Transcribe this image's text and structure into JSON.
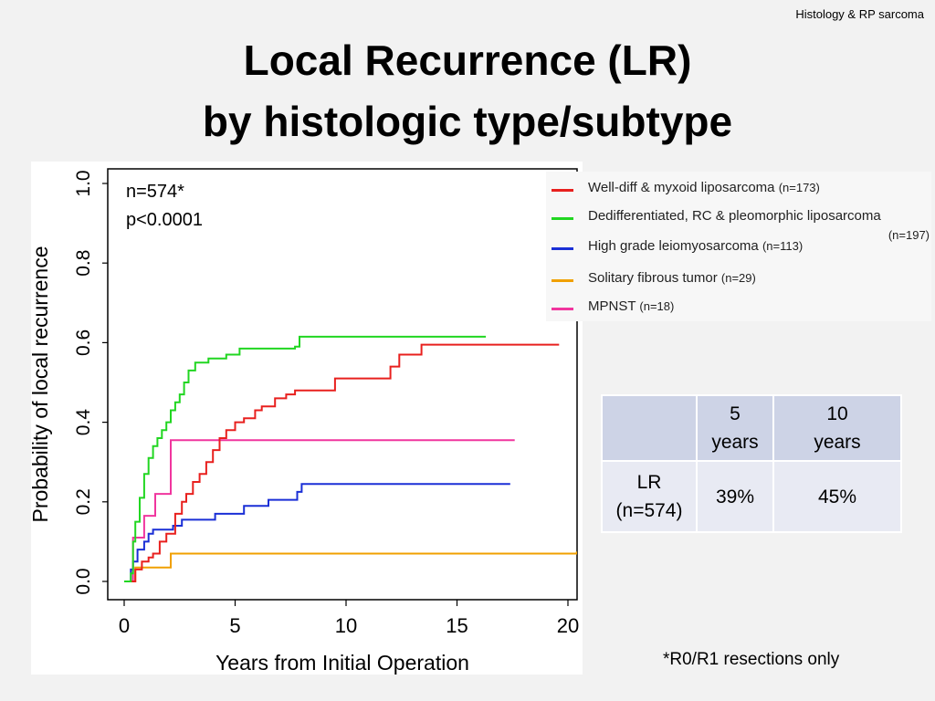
{
  "slide": {
    "corner_label": "Histology & RP sarcoma",
    "title_line1": "Local Recurrence (LR)",
    "title_line2": "by histologic type/subtype",
    "footnote": "*R0/R1 resections only"
  },
  "chart_data": {
    "type": "line",
    "step": true,
    "xlabel": "Years from Initial Operation",
    "ylabel": "Probability of local recurrence",
    "xlim": [
      0,
      20
    ],
    "ylim": [
      0,
      1.0
    ],
    "xticks": [
      "0",
      "5",
      "10",
      "15",
      "20"
    ],
    "yticks": [
      "0.0",
      "0.2",
      "0.4",
      "0.6",
      "0.8",
      "1.0"
    ],
    "annotations": [
      "n=574*",
      "p<0.0001"
    ],
    "legend_position": "top-right",
    "series": [
      {
        "name": "Well-diff & myxoid liposarcoma",
        "n_label": "(n=173)",
        "color": "#e8201e",
        "points": [
          [
            0,
            0
          ],
          [
            0.3,
            0
          ],
          [
            0.5,
            0.03
          ],
          [
            0.8,
            0.05
          ],
          [
            1.1,
            0.06
          ],
          [
            1.3,
            0.07
          ],
          [
            1.6,
            0.1
          ],
          [
            1.9,
            0.12
          ],
          [
            2.3,
            0.17
          ],
          [
            2.6,
            0.2
          ],
          [
            2.8,
            0.22
          ],
          [
            3.1,
            0.25
          ],
          [
            3.4,
            0.27
          ],
          [
            3.7,
            0.3
          ],
          [
            4.0,
            0.33
          ],
          [
            4.3,
            0.36
          ],
          [
            4.6,
            0.38
          ],
          [
            5.0,
            0.4
          ],
          [
            5.4,
            0.41
          ],
          [
            5.9,
            0.43
          ],
          [
            6.2,
            0.44
          ],
          [
            6.8,
            0.46
          ],
          [
            7.3,
            0.47
          ],
          [
            7.7,
            0.48
          ],
          [
            9.5,
            0.51
          ],
          [
            12.0,
            0.54
          ],
          [
            12.4,
            0.57
          ],
          [
            13.4,
            0.595
          ],
          [
            19.6,
            0.595
          ]
        ]
      },
      {
        "name": "Dedifferentiated, RC & pleomorphic liposarcoma",
        "n_label": "(n=197)",
        "color": "#21d621",
        "points": [
          [
            0,
            0
          ],
          [
            0.3,
            0.02
          ],
          [
            0.4,
            0.1
          ],
          [
            0.5,
            0.15
          ],
          [
            0.7,
            0.21
          ],
          [
            0.9,
            0.27
          ],
          [
            1.1,
            0.31
          ],
          [
            1.3,
            0.34
          ],
          [
            1.5,
            0.36
          ],
          [
            1.7,
            0.38
          ],
          [
            1.9,
            0.4
          ],
          [
            2.1,
            0.43
          ],
          [
            2.3,
            0.45
          ],
          [
            2.5,
            0.47
          ],
          [
            2.7,
            0.5
          ],
          [
            2.9,
            0.53
          ],
          [
            3.2,
            0.55
          ],
          [
            3.8,
            0.56
          ],
          [
            4.6,
            0.57
          ],
          [
            5.2,
            0.585
          ],
          [
            7.7,
            0.59
          ],
          [
            7.9,
            0.615
          ],
          [
            16.3,
            0.615
          ]
        ]
      },
      {
        "name": "High grade leiomyosarcoma",
        "n_label": "(n=113)",
        "color": "#1a2fd6",
        "points": [
          [
            0,
            0
          ],
          [
            0.3,
            0.03
          ],
          [
            0.4,
            0.05
          ],
          [
            0.6,
            0.08
          ],
          [
            0.9,
            0.1
          ],
          [
            1.1,
            0.12
          ],
          [
            1.3,
            0.13
          ],
          [
            2.2,
            0.14
          ],
          [
            2.6,
            0.155
          ],
          [
            4.1,
            0.17
          ],
          [
            5.4,
            0.19
          ],
          [
            6.5,
            0.205
          ],
          [
            7.8,
            0.225
          ],
          [
            8.0,
            0.245
          ],
          [
            17.4,
            0.245
          ]
        ]
      },
      {
        "name": "Solitary fibrous tumor",
        "n_label": "(n=29)",
        "color": "#f0a000",
        "points": [
          [
            0,
            0
          ],
          [
            0.2,
            0
          ],
          [
            0.5,
            0.035
          ],
          [
            2.1,
            0.07
          ],
          [
            20.4,
            0.075
          ]
        ]
      },
      {
        "name": "MPNST",
        "n_label": "(n=18)",
        "color": "#f0359e",
        "points": [
          [
            0,
            0
          ],
          [
            0.4,
            0.11
          ],
          [
            0.9,
            0.165
          ],
          [
            1.4,
            0.22
          ],
          [
            2.1,
            0.355
          ],
          [
            17.6,
            0.355
          ]
        ]
      }
    ]
  },
  "lr_table": {
    "headers": [
      "",
      "5\nyears",
      "10\nyears"
    ],
    "rows": [
      {
        "label": "LR\n(n=574)",
        "five_years": "39%",
        "ten_years": "45%"
      }
    ]
  }
}
